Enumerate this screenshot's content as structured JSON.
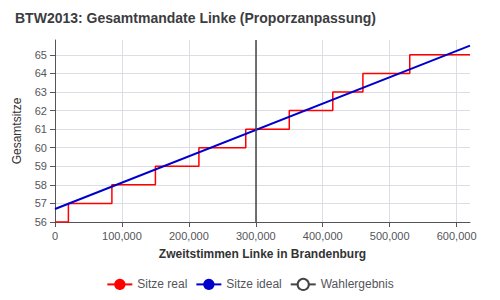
{
  "chart_data": {
    "type": "line",
    "title": "BTW2013: Gesamtmandate Linke (Proporzanpassung)",
    "xlabel": "Zweitstimmen Linke in Brandenburg",
    "ylabel": "Gesamtsitze",
    "xlim": [
      0,
      620000
    ],
    "ylim": [
      56,
      65.8
    ],
    "xticks": [
      0,
      {
        "value": 100000,
        "label": "100,000"
      },
      {
        "value": 200000,
        "label": "200,000"
      },
      {
        "value": 300000,
        "label": "300,000"
      },
      {
        "value": 400000,
        "label": "400,000"
      },
      {
        "value": 500000,
        "label": "500,000"
      },
      {
        "value": 600000,
        "label": "600,000"
      }
    ],
    "yticks": [
      56,
      57,
      58,
      59,
      60,
      61,
      62,
      63,
      64,
      65
    ],
    "grid": true,
    "legend": "bottom",
    "series": [
      {
        "name": "Sitze real",
        "color": "#ff0000",
        "x": [
          0,
          20000,
          20000,
          85000,
          85000,
          150000,
          150000,
          215000,
          215000,
          285000,
          285000,
          350000,
          350000,
          415000,
          415000,
          460000,
          460000,
          530000,
          530000,
          620000
        ],
        "values": [
          56,
          56,
          57,
          57,
          58,
          58,
          59,
          59,
          60,
          60,
          61,
          61,
          62,
          62,
          63,
          63,
          64,
          64,
          65,
          65
        ]
      },
      {
        "name": "Sitze ideal",
        "color": "#0000cc",
        "x": [
          0,
          620000
        ],
        "values": [
          56.7,
          65.5
        ]
      },
      {
        "name": "Wahlergebnis",
        "color": "#444444",
        "type": "vline",
        "x": [
          300000
        ]
      }
    ]
  }
}
